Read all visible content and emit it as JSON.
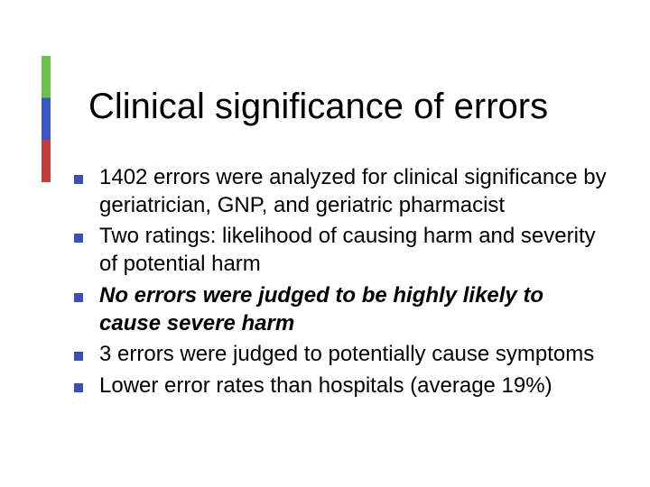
{
  "accent_colors": [
    "#6bbf4b",
    "#3b56c4",
    "#c43b3b"
  ],
  "bullet_color": "#3b4fb5",
  "text_color": "#000000",
  "background_color": "#ffffff",
  "title": "Clinical significance of errors",
  "title_fontsize": 40,
  "body_fontsize": 24,
  "bullets": [
    {
      "text": "1402 errors were analyzed for clinical significance by geriatrician, GNP, and geriatric pharmacist",
      "style": "normal"
    },
    {
      "text": "Two ratings: likelihood of causing harm and severity of potential harm",
      "style": "normal"
    },
    {
      "text": "No errors were judged to be highly likely to cause severe harm",
      "style": "italic-bold"
    },
    {
      "text": "3 errors were judged to potentially cause symptoms",
      "style": "normal"
    },
    {
      "text": "Lower error rates than hospitals (average 19%)",
      "style": "normal"
    }
  ]
}
